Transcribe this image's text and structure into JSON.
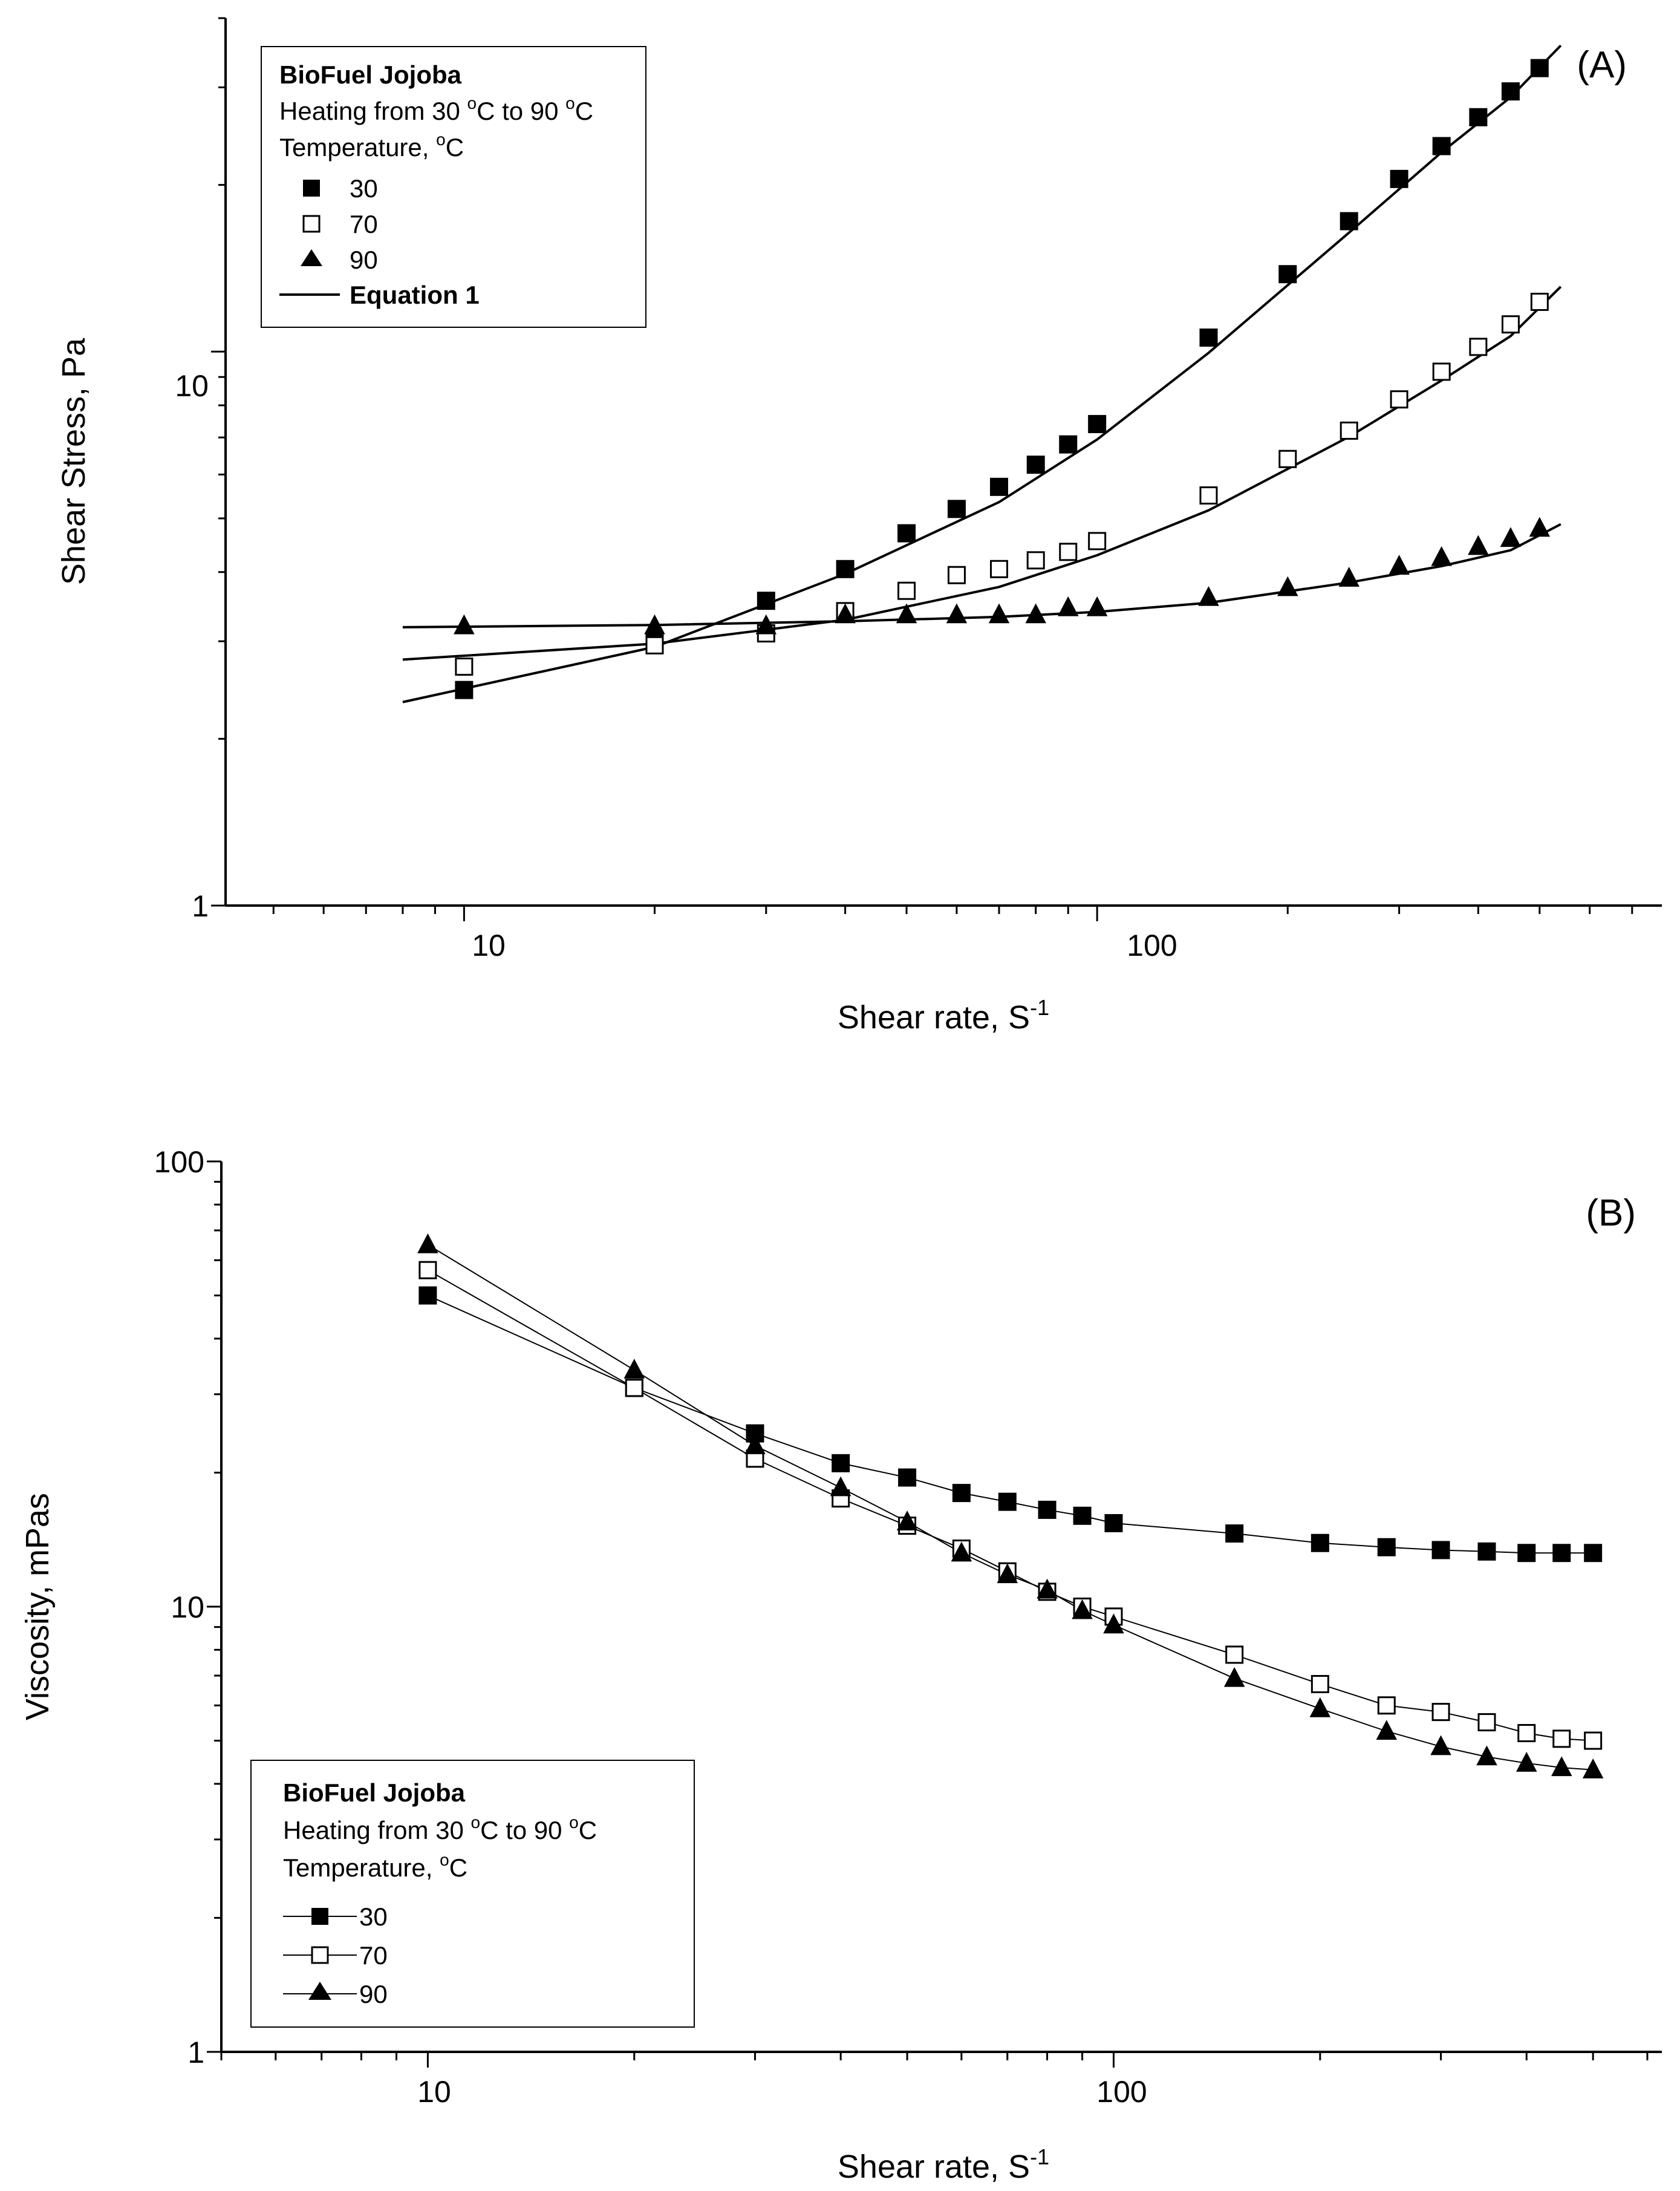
{
  "chart_data": [
    {
      "id": "A",
      "type": "scatter",
      "panel_label": "(A)",
      "xscale": "log",
      "yscale": "log",
      "xlabel": "Shear rate, S",
      "xlabel_sup": "-1",
      "ylabel": "Shear Stress, Pa",
      "xlim": [
        4.2,
        780
      ],
      "ylim": [
        1,
        40
      ],
      "xticks": [
        10,
        100
      ],
      "xtick_labels": [
        "10",
        "100"
      ],
      "yticks": [
        1,
        10
      ],
      "ytick_labels": [
        "1",
        "10"
      ],
      "legend": {
        "position": "top-left",
        "title": "BioFuel Jojoba",
        "subtitle_pre": "Heating from 30 ",
        "subtitle_mid": "C to 90 ",
        "subtitle_post": "C",
        "degree_mark": "o",
        "temp_label": "Temperature, ",
        "temp_unit": "C",
        "fit_label": "Equation 1"
      },
      "series": [
        {
          "name": "30",
          "marker": "filled-square",
          "x": [
            10,
            20,
            30,
            40,
            50,
            60,
            70,
            80,
            90,
            100,
            150,
            200,
            250,
            300,
            350,
            400,
            450,
            500
          ],
          "y": [
            2.45,
            3.0,
            3.55,
            4.05,
            4.7,
            5.2,
            5.7,
            6.25,
            6.8,
            7.4,
            10.6,
            13.8,
            17.2,
            20.5,
            23.5,
            26.5,
            29.5,
            32.5
          ],
          "fit": {
            "x": [
              8,
              20,
              40,
              70,
              100,
              150,
              250,
              350,
              450,
              540
            ],
            "y": [
              2.33,
              2.93,
              3.97,
              5.35,
              6.94,
              9.95,
              16.4,
              22.9,
              28.8,
              35.7
            ]
          }
        },
        {
          "name": "70",
          "marker": "open-square",
          "x": [
            10,
            20,
            30,
            40,
            50,
            60,
            70,
            80,
            90,
            100,
            150,
            200,
            250,
            300,
            350,
            400,
            450,
            500
          ],
          "y": [
            2.7,
            2.95,
            3.1,
            3.4,
            3.7,
            3.95,
            4.05,
            4.2,
            4.35,
            4.55,
            5.5,
            6.4,
            7.2,
            8.2,
            9.2,
            10.2,
            11.2,
            12.3
          ],
          "fit": {
            "x": [
              8,
              20,
              40,
              70,
              100,
              150,
              250,
              350,
              450,
              540
            ],
            "y": [
              2.78,
              2.97,
              3.28,
              3.76,
              4.29,
              5.17,
              7.02,
              8.87,
              10.67,
              13.1
            ]
          }
        },
        {
          "name": "90",
          "marker": "filled-triangle",
          "x": [
            10,
            20,
            30,
            40,
            50,
            60,
            70,
            80,
            90,
            100,
            150,
            200,
            250,
            300,
            350,
            400,
            450,
            500
          ],
          "y": [
            3.2,
            3.2,
            3.2,
            3.35,
            3.35,
            3.35,
            3.35,
            3.35,
            3.45,
            3.45,
            3.6,
            3.75,
            3.9,
            4.1,
            4.25,
            4.45,
            4.6,
            4.8
          ],
          "fit": {
            "x": [
              8,
              20,
              40,
              70,
              100,
              150,
              250,
              350,
              450,
              540
            ],
            "y": [
              3.18,
              3.21,
              3.26,
              3.32,
              3.39,
              3.52,
              3.83,
              4.1,
              4.38,
              4.88
            ]
          }
        }
      ]
    },
    {
      "id": "B",
      "type": "line",
      "panel_label": "(B)",
      "xscale": "log",
      "yscale": "log",
      "xlabel": "Shear rate, S",
      "xlabel_sup": "-1",
      "ylabel": "Viscosity, mPas",
      "xlim": [
        5,
        630
      ],
      "ylim": [
        1,
        100
      ],
      "xticks": [
        10,
        100
      ],
      "xtick_labels": [
        "10",
        "100"
      ],
      "yticks": [
        1,
        10,
        100
      ],
      "ytick_labels": [
        "1",
        "10",
        "100"
      ],
      "legend": {
        "position": "bottom-left",
        "title": "BioFuel Jojoba",
        "subtitle_pre": "Heating from 30 ",
        "subtitle_mid": "C to 90 ",
        "subtitle_post": "C",
        "degree_mark": "o",
        "temp_label": "Temperature, ",
        "temp_unit": "C"
      },
      "series": [
        {
          "name": "30",
          "marker": "filled-square",
          "x": [
            10,
            20,
            30,
            40,
            50,
            60,
            70,
            80,
            90,
            100,
            150,
            200,
            250,
            300,
            350,
            400,
            450,
            500
          ],
          "y": [
            50,
            31,
            24.5,
            21,
            19.5,
            18,
            17.2,
            16.5,
            16,
            15.4,
            14.6,
            13.9,
            13.6,
            13.4,
            13.3,
            13.2,
            13.2,
            13.2
          ]
        },
        {
          "name": "70",
          "marker": "open-square",
          "x": [
            10,
            20,
            30,
            40,
            50,
            60,
            70,
            80,
            90,
            100,
            150,
            200,
            250,
            300,
            350,
            400,
            450,
            500
          ],
          "y": [
            57,
            31,
            21.5,
            17.5,
            15.2,
            13.5,
            12,
            10.8,
            10,
            9.5,
            7.8,
            6.7,
            6.0,
            5.8,
            5.5,
            5.2,
            5.05,
            5.0
          ]
        },
        {
          "name": "90",
          "marker": "filled-triangle",
          "x": [
            10,
            20,
            30,
            40,
            50,
            60,
            70,
            80,
            90,
            100,
            150,
            200,
            250,
            300,
            350,
            400,
            450,
            500
          ],
          "y": [
            65,
            34,
            23,
            18.5,
            15.5,
            13.2,
            11.8,
            10.9,
            9.8,
            9.1,
            6.9,
            5.9,
            5.25,
            4.85,
            4.6,
            4.45,
            4.35,
            4.3
          ]
        }
      ]
    }
  ]
}
